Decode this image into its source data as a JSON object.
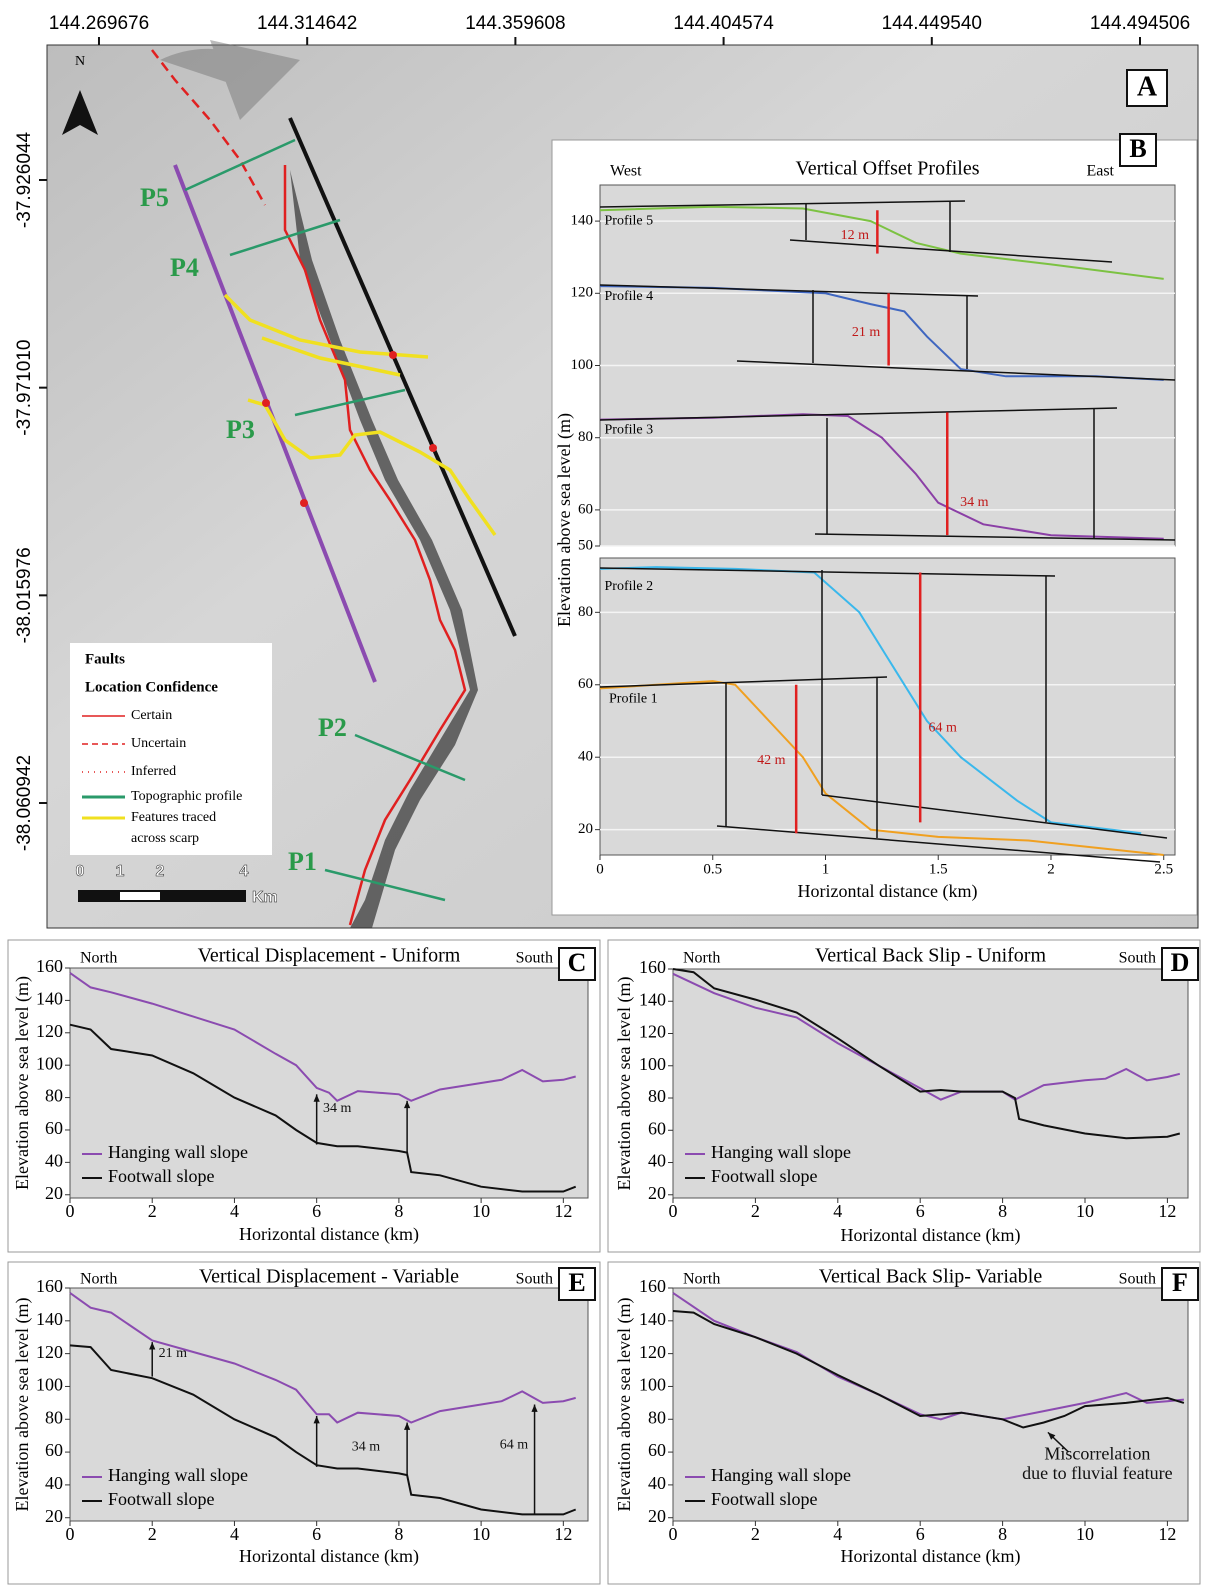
{
  "map": {
    "panel": "A",
    "north": "N",
    "xlim": [
      144.25845,
      144.50703
    ],
    "ylim": [
      -38.088004,
      -37.896817
    ],
    "xticks": [
      144.269676,
      144.314642,
      144.359608,
      144.404574,
      {
        "value": 144.44954,
        "label": "144.449540"
      },
      144.494506
    ],
    "yticks": [
      -37.926044,
      {
        "value": -37.97101,
        "label": "-37.971010"
      },
      -38.015976,
      -38.060942
    ],
    "profiles": [
      "P5",
      "P4",
      "P3",
      "P2",
      "P1"
    ],
    "legend": {
      "title": "Faults",
      "subtitle": "Location Confidence",
      "items": [
        "Certain",
        "Uncertain",
        "Inferred",
        "Topographic profile",
        "Features traced",
        "across scarp"
      ]
    },
    "scale": {
      "labels": [
        "0",
        "1",
        "2",
        "4"
      ],
      "unit": "Km"
    }
  },
  "chart_data": [
    {
      "type": "line",
      "panel": "B",
      "title": "Vertical Offset Profiles",
      "left_label": "West",
      "right_label": "East",
      "ylabel": "Elevation above sea level (m)",
      "xlim": [
        0,
        2.55
      ],
      "ylim": [
        50,
        150
      ],
      "yticks": [
        50,
        60,
        80,
        100,
        120,
        140
      ],
      "grid": true,
      "annotations": [
        "12 m",
        "21 m",
        "34 m"
      ],
      "series": [
        {
          "name": "Profile 5",
          "color": "#7cc242",
          "x": [
            0,
            0.5,
            0.9,
            1.2,
            1.4,
            1.6,
            2.0,
            2.5
          ],
          "values": [
            143,
            144,
            143.5,
            140,
            134,
            131,
            128,
            124
          ]
        },
        {
          "name": "Profile 4",
          "color": "#3f66c0",
          "x": [
            0,
            0.5,
            1,
            1.2,
            1.35,
            1.45,
            1.6,
            1.8,
            2.2,
            2.5
          ],
          "values": [
            122,
            121.5,
            120,
            117,
            115,
            108,
            99,
            97,
            97,
            96
          ]
        },
        {
          "name": "Profile 3",
          "color": "#8b3fa6",
          "x": [
            0,
            0.5,
            0.9,
            1.1,
            1.25,
            1.4,
            1.5,
            1.7,
            2.0,
            2.5
          ],
          "values": [
            85,
            85.5,
            86.5,
            86,
            80,
            70,
            62,
            56,
            53,
            52
          ]
        }
      ]
    },
    {
      "type": "line",
      "xlabel": "Horizontal distance (km)",
      "xlim": [
        0,
        2.55
      ],
      "ylim": [
        13,
        95
      ],
      "xticks": [
        0,
        0.5,
        1,
        1.5,
        2,
        2.5
      ],
      "yticks": [
        20,
        40,
        60,
        80
      ],
      "grid": true,
      "annotations": [
        "64 m",
        "42 m"
      ],
      "series": [
        {
          "name": "Profile 2",
          "color": "#3ab8ec",
          "x": [
            0,
            0.25,
            0.6,
            0.95,
            1.15,
            1.3,
            1.45,
            1.6,
            1.85,
            2.0,
            2.4
          ],
          "values": [
            92,
            92.5,
            92,
            91,
            80,
            65,
            50,
            40,
            28,
            22,
            19
          ]
        },
        {
          "name": "Profile 1",
          "color": "#f0a020",
          "x": [
            0,
            0.5,
            0.6,
            0.75,
            0.9,
            1.0,
            1.2,
            1.5,
            1.9,
            2.2,
            2.5
          ],
          "values": [
            59,
            61,
            60,
            50,
            40,
            30,
            20,
            18,
            17,
            15,
            13
          ]
        }
      ]
    },
    {
      "type": "line",
      "panel": "C",
      "title": "Vertical Displacement - Uniform",
      "left_label": "North",
      "right_label": "South",
      "ylabel": "Elevation above sea level (m)",
      "xlabel": "Horizontal distance (km)",
      "xlim": [
        0,
        12.6
      ],
      "ylim": [
        18,
        160
      ],
      "xticks": [
        0,
        2,
        4,
        6,
        8,
        10,
        12
      ],
      "yticks": [
        20,
        40,
        60,
        80,
        100,
        120,
        140,
        160
      ],
      "legend": "lower left",
      "annotations": [
        "34 m"
      ],
      "series": [
        {
          "name": "Hanging wall slope",
          "color": "#8b4bb0",
          "x": [
            0,
            0.5,
            1,
            2,
            3,
            4,
            5,
            5.5,
            6,
            6.3,
            6.5,
            7,
            8,
            8.3,
            9,
            10,
            10.5,
            11,
            11.5,
            12,
            12.3
          ],
          "values": [
            157,
            148,
            145,
            138,
            130,
            122,
            107,
            100,
            86,
            83,
            78,
            84,
            82,
            78,
            85,
            89,
            91,
            97,
            90,
            91,
            93
          ]
        },
        {
          "name": "Footwall slope",
          "color": "#111111",
          "x": [
            0,
            0.5,
            1,
            2,
            3,
            4,
            5,
            5.5,
            6,
            6.5,
            7,
            8,
            8.2,
            8.3,
            9,
            10,
            11,
            12,
            12.3
          ],
          "values": [
            125,
            122,
            110,
            106,
            95,
            80,
            69,
            60,
            52,
            50,
            50,
            47,
            46,
            34,
            32,
            25,
            22,
            22,
            25
          ]
        }
      ]
    },
    {
      "type": "line",
      "panel": "D",
      "title": "Vertical Back Slip - Uniform",
      "left_label": "North",
      "right_label": "South",
      "ylabel": "Elevation above sea level (m)",
      "xlabel": "Horizontal distance (km)",
      "xlim": [
        0,
        12.5
      ],
      "ylim": [
        18,
        160
      ],
      "xticks": [
        0,
        2,
        4,
        6,
        8,
        10,
        12
      ],
      "yticks": [
        20,
        40,
        60,
        80,
        100,
        120,
        140,
        160
      ],
      "legend": "lower left",
      "annotations": [],
      "series": [
        {
          "name": "Hanging wall slope",
          "color": "#8b4bb0",
          "x": [
            0,
            1,
            2,
            3,
            4,
            5,
            6,
            6.5,
            7,
            8,
            8.3,
            9,
            10,
            10.5,
            11,
            11.5,
            12,
            12.3
          ],
          "values": [
            157,
            145,
            136,
            130,
            114,
            100,
            86,
            79,
            84,
            84,
            79,
            88,
            91,
            92,
            98,
            91,
            93,
            95
          ]
        },
        {
          "name": "Footwall slope",
          "color": "#111111",
          "x": [
            0,
            0.5,
            1,
            2,
            3,
            4,
            5,
            6,
            6.5,
            7,
            8,
            8.3,
            8.4,
            9,
            10,
            11,
            12,
            12.3
          ],
          "values": [
            160,
            158,
            148,
            141,
            133,
            117,
            100,
            84,
            85,
            84,
            84,
            80,
            67,
            63,
            58,
            55,
            56,
            58
          ]
        }
      ]
    },
    {
      "type": "line",
      "panel": "E",
      "title": "Vertical Displacement - Variable",
      "left_label": "North",
      "right_label": "South",
      "ylabel": "Elevation above sea level (m)",
      "xlabel": "Horizontal distance (km)",
      "xlim": [
        0,
        12.6
      ],
      "ylim": [
        18,
        160
      ],
      "xticks": [
        0,
        2,
        4,
        6,
        8,
        10,
        12
      ],
      "yticks": [
        20,
        40,
        60,
        80,
        100,
        120,
        140,
        160
      ],
      "legend": "lower left",
      "annotations": [
        "21 m",
        "34 m",
        "64 m"
      ],
      "series": [
        {
          "name": "Hanging wall slope",
          "color": "#8b4bb0",
          "x": [
            0,
            0.5,
            1,
            2,
            3,
            4,
            5,
            5.5,
            6,
            6.3,
            6.5,
            7,
            8,
            8.3,
            9,
            10,
            10.5,
            11,
            11.5,
            12,
            12.3
          ],
          "values": [
            157,
            148,
            145,
            128,
            121,
            114,
            104,
            98,
            83,
            83,
            78,
            84,
            82,
            78,
            85,
            89,
            91,
            97,
            90,
            91,
            93
          ]
        },
        {
          "name": "Footwall slope",
          "color": "#111111",
          "x": [
            0,
            0.5,
            1,
            2,
            3,
            4,
            5,
            5.5,
            6,
            6.5,
            7,
            8,
            8.2,
            8.3,
            9,
            10,
            11,
            12,
            12.3
          ],
          "values": [
            125,
            124,
            110,
            105,
            95,
            80,
            69,
            60,
            52,
            50,
            50,
            47,
            46,
            34,
            32,
            25,
            22,
            22,
            25
          ]
        }
      ]
    },
    {
      "type": "line",
      "panel": "F",
      "title": "Vertical Back Slip- Variable",
      "left_label": "North",
      "right_label": "South",
      "ylabel": "Elevation above sea level (m)",
      "xlabel": "Horizontal distance (km)",
      "xlim": [
        0,
        12.5
      ],
      "ylim": [
        18,
        160
      ],
      "xticks": [
        0,
        2,
        4,
        6,
        8,
        10,
        12
      ],
      "yticks": [
        20,
        40,
        60,
        80,
        100,
        120,
        140,
        160
      ],
      "legend": "lower left",
      "annotations": [
        "Miscorrelation",
        "due to fluvial feature"
      ],
      "series": [
        {
          "name": "Hanging wall slope",
          "color": "#8b4bb0",
          "x": [
            0,
            1,
            2,
            3,
            4,
            5,
            6,
            6.5,
            7,
            8,
            9,
            10,
            11,
            11.5,
            12,
            12.4
          ],
          "values": [
            157,
            140,
            130,
            121,
            106,
            95,
            83,
            80,
            84,
            80,
            85,
            90,
            96,
            90,
            91,
            92
          ]
        },
        {
          "name": "Footwall slope",
          "color": "#111111",
          "x": [
            0,
            0.5,
            1,
            2,
            3,
            4,
            5,
            6,
            7,
            8,
            8.5,
            9,
            9.5,
            10,
            11,
            12,
            12.4
          ],
          "values": [
            146,
            145,
            138,
            130,
            120,
            107,
            95,
            82,
            84,
            80,
            75,
            78,
            82,
            88,
            90,
            93,
            90
          ]
        }
      ]
    }
  ]
}
